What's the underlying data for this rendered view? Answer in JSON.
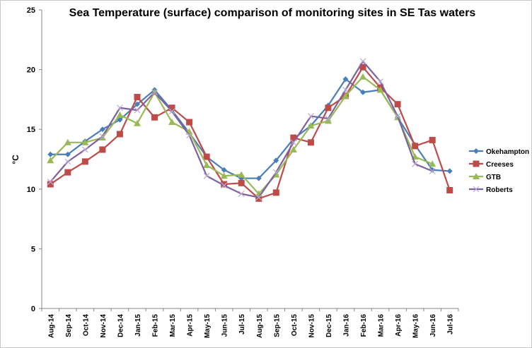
{
  "chart_data": {
    "type": "line",
    "title": "Sea Temperature (surface) comparison of monitoring sites in SE Tas waters",
    "xlabel": "",
    "ylabel": "°C",
    "ylim": [
      0,
      25
    ],
    "yticks": [
      0,
      5,
      10,
      15,
      20,
      25
    ],
    "grid": false,
    "legend_position": "right",
    "categories": [
      "Aug-14",
      "Sep-14",
      "Oct-14",
      "Nov-14",
      "Dec-14",
      "Jan-15",
      "Feb-15",
      "Mar-15",
      "Apr-15",
      "May-15",
      "Jun-15",
      "Jul-15",
      "Aug-15",
      "Sep-15",
      "Oct-15",
      "Nov-15",
      "Dec-15",
      "Jan-16",
      "Feb-16",
      "Mar-16",
      "Apr-16",
      "May-16",
      "Jun-16",
      "Jul-16"
    ],
    "series": [
      {
        "name": "Okehampton",
        "color": "#4a7ebb",
        "marker": "diamond",
        "values": [
          12.9,
          12.9,
          14.0,
          15.0,
          15.8,
          17.1,
          18.3,
          16.6,
          14.7,
          12.7,
          11.6,
          10.9,
          10.9,
          12.4,
          14.2,
          15.3,
          17.0,
          19.2,
          18.1,
          18.3,
          16.0,
          13.7,
          11.6,
          11.5
        ]
      },
      {
        "name": "Creeses",
        "color": "#be4b48",
        "marker": "square",
        "values": [
          10.4,
          11.4,
          12.3,
          13.3,
          14.6,
          17.7,
          16.0,
          16.8,
          15.6,
          12.7,
          10.4,
          10.5,
          9.2,
          9.7,
          14.3,
          13.9,
          16.8,
          17.8,
          20.2,
          18.5,
          17.1,
          13.6,
          14.1,
          9.9
        ]
      },
      {
        "name": "GTB",
        "color": "#98b954",
        "marker": "triangle",
        "values": [
          12.4,
          13.9,
          13.9,
          14.3,
          16.2,
          15.5,
          18.1,
          15.6,
          14.8,
          12.0,
          11.1,
          11.2,
          9.6,
          11.2,
          13.3,
          15.3,
          15.7,
          17.8,
          19.4,
          18.3,
          16.0,
          12.7,
          12.1,
          null
        ]
      },
      {
        "name": "Roberts",
        "color": "#7d60a0",
        "marker": "x",
        "values": [
          10.6,
          12.3,
          13.3,
          14.4,
          16.8,
          16.6,
          18.1,
          16.5,
          14.5,
          11.1,
          10.3,
          9.6,
          9.3,
          11.4,
          13.9,
          16.1,
          15.9,
          18.3,
          20.7,
          19.0,
          16.1,
          12.1,
          11.5,
          null
        ]
      }
    ]
  }
}
